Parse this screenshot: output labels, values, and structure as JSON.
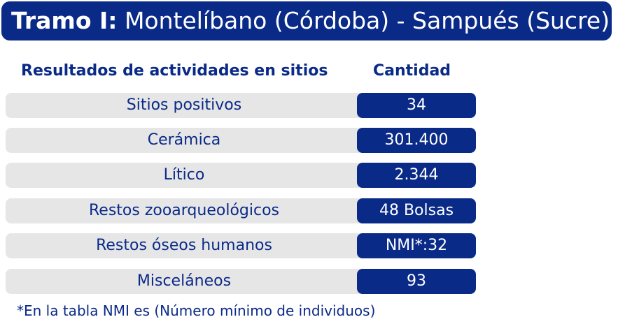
{
  "title": {
    "bold": "Tramo I:",
    "rest": " Montelíbano (Córdoba) - Sampués (Sucre)"
  },
  "headers": {
    "left": "Resultados de actividades en sitios",
    "right": "Cantidad"
  },
  "rows": [
    {
      "label": "Sitios positivos",
      "value": "34"
    },
    {
      "label": "Cerámica",
      "value": "301.400"
    },
    {
      "label": "Lítico",
      "value": "2.344"
    },
    {
      "label": "Restos zooarqueológicos",
      "value": "48 Bolsas"
    },
    {
      "label": "Restos óseos humanos",
      "value": "NMI*:32"
    },
    {
      "label": "Misceláneos",
      "value": "93"
    }
  ],
  "footnote": "*En la tabla NMI es (Número mínimo de individuos)",
  "colors": {
    "accent": "#0a2a88",
    "row_bg": "#e6e6e6"
  }
}
